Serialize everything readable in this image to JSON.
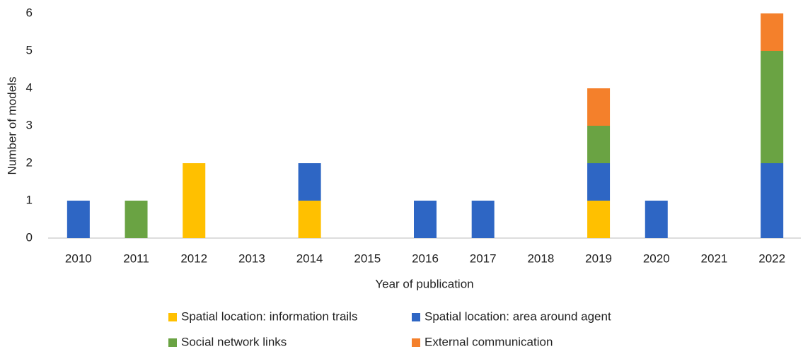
{
  "chart_data": {
    "type": "bar",
    "stacked": true,
    "x_label": "Year of publication",
    "y_label": "Number of models",
    "categories": [
      "2010",
      "2011",
      "2012",
      "2013",
      "2014",
      "2015",
      "2016",
      "2017",
      "2018",
      "2019",
      "2020",
      "2021",
      "2022"
    ],
    "series": [
      {
        "name": "Spatial location: information trails",
        "color": "#ffc000",
        "values": [
          0,
          0,
          2,
          0,
          1,
          0,
          0,
          0,
          0,
          1,
          0,
          0,
          0
        ]
      },
      {
        "name": "Spatial location: area around agent",
        "color": "#2e66c4",
        "values": [
          1,
          0,
          0,
          0,
          1,
          0,
          1,
          1,
          0,
          1,
          1,
          0,
          2
        ]
      },
      {
        "name": "Social network links",
        "color": "#6aa343",
        "values": [
          0,
          1,
          0,
          0,
          0,
          0,
          0,
          0,
          0,
          1,
          0,
          0,
          3
        ]
      },
      {
        "name": "External communication",
        "color": "#f4802b",
        "values": [
          0,
          0,
          0,
          0,
          0,
          0,
          0,
          0,
          0,
          1,
          0,
          0,
          1
        ]
      }
    ],
    "ylim": [
      0,
      6
    ],
    "yticks": [
      0,
      1,
      2,
      3,
      4,
      5,
      6
    ],
    "grid": false,
    "legend": "bottom"
  }
}
